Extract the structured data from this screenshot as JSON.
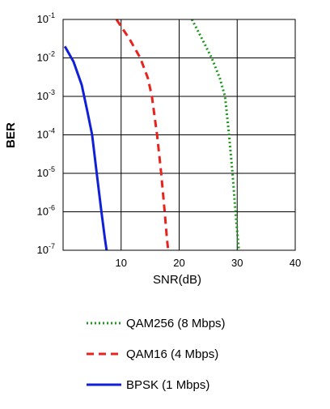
{
  "chart_data": {
    "type": "line",
    "title": "",
    "xlabel": "SNR(dB)",
    "ylabel": "BER",
    "xlim": [
      0,
      40
    ],
    "ylim": [
      1e-07,
      0.1
    ],
    "y_scale": "log",
    "grid": true,
    "x_ticks": [
      {
        "value": 10,
        "label": "10"
      },
      {
        "value": 20,
        "label": "20"
      },
      {
        "value": 30,
        "label": "30"
      },
      {
        "value": 40,
        "label": "40"
      }
    ],
    "y_ticks": [
      {
        "value": 0.1,
        "base": "10",
        "exp": "-1"
      },
      {
        "value": 0.01,
        "base": "10",
        "exp": "-2"
      },
      {
        "value": 0.001,
        "base": "10",
        "exp": "-3"
      },
      {
        "value": 0.0001,
        "base": "10",
        "exp": "-4"
      },
      {
        "value": 1e-05,
        "base": "10",
        "exp": "-5"
      },
      {
        "value": 1e-06,
        "base": "10",
        "exp": "-6"
      },
      {
        "value": 1e-07,
        "base": "10",
        "exp": "-7"
      }
    ],
    "legend_position": "bottom",
    "series": [
      {
        "name": "QAM256 (8 Mbps)",
        "color": "#1a9a1a",
        "style": "dotted",
        "points": [
          [
            22.2,
            0.1
          ],
          [
            24.0,
            0.03
          ],
          [
            25.6,
            0.01
          ],
          [
            27.0,
            0.003
          ],
          [
            27.9,
            0.001
          ],
          [
            28.6,
            0.0001
          ],
          [
            29.2,
            1e-05
          ],
          [
            29.7,
            1e-06
          ],
          [
            30.0,
            3e-07
          ],
          [
            30.3,
            1e-07
          ]
        ]
      },
      {
        "name": "QAM16 (4 Mbps)",
        "color": "#e8221c",
        "style": "dashed",
        "points": [
          [
            9.2,
            0.1
          ],
          [
            11.5,
            0.03
          ],
          [
            13.3,
            0.01
          ],
          [
            14.6,
            0.003
          ],
          [
            15.3,
            0.001
          ],
          [
            16.2,
            0.0001
          ],
          [
            16.9,
            1e-05
          ],
          [
            17.5,
            1e-06
          ],
          [
            17.9,
            2e-07
          ],
          [
            18.1,
            1e-07
          ]
        ]
      },
      {
        "name": "BPSK (1 Mbps)",
        "color": "#1020d8",
        "style": "solid",
        "points": [
          [
            0.3,
            0.02
          ],
          [
            1.8,
            0.008
          ],
          [
            3.2,
            0.002
          ],
          [
            4.2,
            0.0004
          ],
          [
            5.0,
            0.0001
          ],
          [
            5.8,
            1e-05
          ],
          [
            6.6,
            1e-06
          ],
          [
            7.2,
            2e-07
          ],
          [
            7.5,
            1e-07
          ]
        ]
      }
    ]
  }
}
